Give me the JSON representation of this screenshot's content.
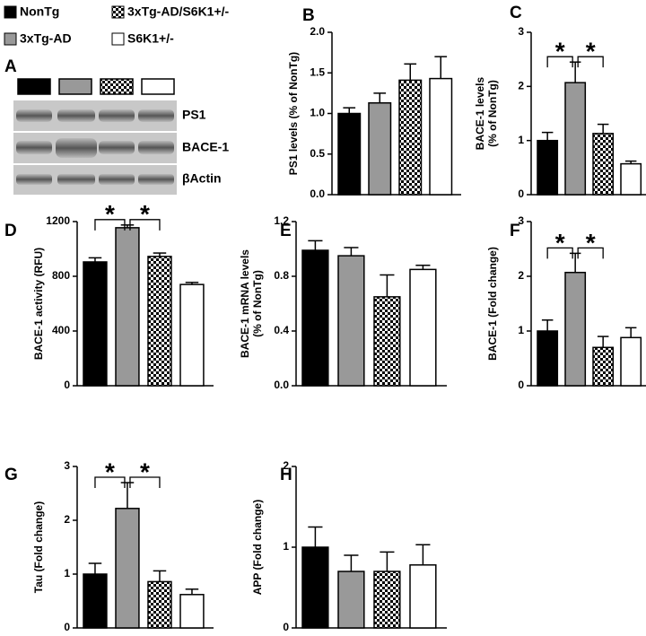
{
  "legend": [
    {
      "name": "NonTg",
      "color": "#000000"
    },
    {
      "name": "3xTg-AD",
      "color": "#999999"
    },
    {
      "name": "3xTg-AD/S6K1+/-",
      "color": "#000000",
      "pattern": "checkered"
    },
    {
      "name": "S6K1+/-",
      "color": "#ffffff"
    }
  ],
  "blot": {
    "panel": "A",
    "labels": [
      "PS1",
      "BACE-1",
      "βActin"
    ]
  },
  "chart_data": [
    {
      "type": "bar",
      "panel": "B",
      "ylabel": [
        "PS1 levels (% of NonTg)"
      ],
      "values": [
        1.0,
        1.13,
        1.41,
        1.43
      ],
      "errors": [
        0.07,
        0.12,
        0.2,
        0.27
      ],
      "ylim": [
        0,
        2
      ],
      "yticks": [
        {
          "value": 0,
          "label": "0.0"
        },
        0.5,
        {
          "value": 1,
          "label": "1.0"
        },
        1.5,
        {
          "value": 2,
          "label": "2.0"
        }
      ],
      "annotations": []
    },
    {
      "type": "bar",
      "panel": "C",
      "ylabel": [
        "BACE-1 levels",
        "(% of NonTg)"
      ],
      "values": [
        1.0,
        2.07,
        1.13,
        0.57
      ],
      "errors": [
        0.15,
        0.38,
        0.17,
        0.05
      ],
      "ylim": [
        0,
        3
      ],
      "yticks": [
        0,
        1,
        2,
        3
      ],
      "annotations": [
        "*",
        "*"
      ]
    },
    {
      "type": "bar",
      "panel": "D",
      "ylabel": [
        "BACE-1 activity (RFU)"
      ],
      "values": [
        905,
        1155,
        945,
        740
      ],
      "errors": [
        30,
        20,
        25,
        15
      ],
      "ylim": [
        0,
        1200
      ],
      "yticks": [
        0,
        400,
        800,
        1200
      ],
      "annotations": [
        "*",
        "*"
      ]
    },
    {
      "type": "bar",
      "panel": "E",
      "ylabel": [
        "BACE-1 mRNA levels",
        "(% of NonTg)"
      ],
      "values": [
        0.99,
        0.95,
        0.65,
        0.85
      ],
      "errors": [
        0.07,
        0.06,
        0.16,
        0.03
      ],
      "ylim": [
        0,
        1.2
      ],
      "yticks": [
        {
          "value": 0,
          "label": "0.0"
        },
        0.4,
        0.8,
        1.2
      ],
      "annotations": []
    },
    {
      "type": "bar",
      "panel": "F",
      "ylabel": [
        "BACE-1 (Fold change)"
      ],
      "values": [
        1.0,
        2.07,
        0.7,
        0.88
      ],
      "errors": [
        0.2,
        0.35,
        0.2,
        0.18
      ],
      "ylim": [
        0,
        3
      ],
      "yticks": [
        0,
        1,
        2,
        3
      ],
      "annotations": [
        "*",
        "*"
      ]
    },
    {
      "type": "bar",
      "panel": "G",
      "ylabel": [
        "Tau (Fold change)"
      ],
      "values": [
        1.0,
        2.22,
        0.86,
        0.62
      ],
      "errors": [
        0.2,
        0.48,
        0.2,
        0.1
      ],
      "ylim": [
        0,
        3
      ],
      "yticks": [
        0,
        1,
        2,
        3
      ],
      "annotations": [
        "*",
        "*"
      ]
    },
    {
      "type": "bar",
      "panel": "H",
      "ylabel": [
        "APP (Fold change)"
      ],
      "values": [
        1.0,
        0.7,
        0.7,
        0.78
      ],
      "errors": [
        0.25,
        0.2,
        0.24,
        0.25
      ],
      "ylim": [
        0,
        2
      ],
      "yticks": [
        0,
        1,
        2
      ],
      "annotations": []
    }
  ]
}
